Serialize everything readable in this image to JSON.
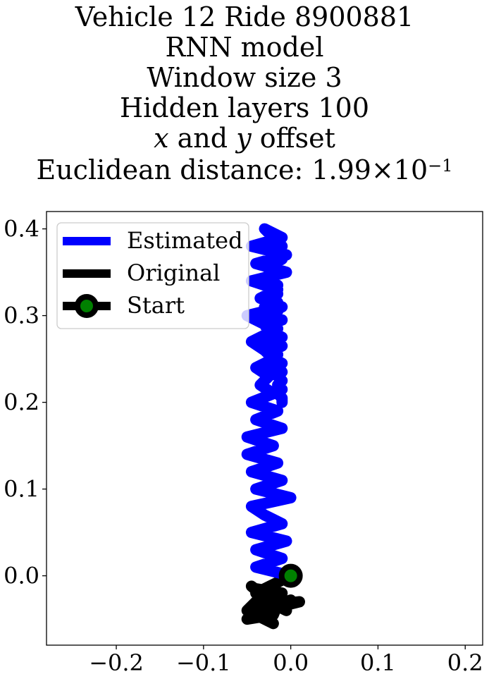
{
  "chart_data": {
    "type": "line",
    "title_lines": [
      "Vehicle 12 Ride 8900881",
      "RNN model",
      "Window size 3",
      "Hidden layers 100"
    ],
    "offset_line": {
      "x": "x",
      "and": " and ",
      "y": "y",
      "rest": " offset"
    },
    "distance_line": {
      "prefix": "Euclidean distance: ",
      "mantissa": "1.99",
      "times": "×",
      "base": "10",
      "exponent": "−1"
    },
    "xlim": [
      -0.28,
      0.22
    ],
    "ylim": [
      -0.08,
      0.42
    ],
    "xticks": [
      -0.2,
      -0.1,
      0.0,
      0.1,
      0.2
    ],
    "xtick_labels": [
      "−0.2",
      "−0.1",
      "0.0",
      "0.1",
      "0.2"
    ],
    "yticks": [
      0.0,
      0.1,
      0.2,
      0.3,
      0.4
    ],
    "ytick_labels": [
      "0.0",
      "0.1",
      "0.2",
      "0.3",
      "0.4"
    ],
    "legend_placement": "upper-left",
    "series": [
      {
        "name": "Estimated",
        "color": "#0000ff",
        "x": [
          0.0,
          -0.04,
          -0.01,
          -0.04,
          -0.005,
          -0.045,
          -0.01,
          -0.03,
          -0.045,
          0.0,
          -0.04,
          -0.01,
          -0.045,
          -0.015,
          -0.05,
          -0.02,
          -0.05,
          -0.01,
          -0.04,
          -0.015,
          -0.045,
          -0.02,
          -0.035,
          -0.025,
          -0.04,
          -0.02,
          -0.03,
          -0.045,
          -0.025,
          -0.03,
          -0.05,
          -0.01,
          -0.035,
          -0.015,
          -0.045,
          -0.005,
          -0.04,
          -0.005,
          -0.045,
          -0.01,
          -0.03,
          -0.02,
          -0.025,
          -0.01,
          -0.015,
          -0.02,
          -0.01,
          -0.02,
          -0.02,
          -0.025,
          -0.02,
          -0.025,
          -0.015,
          -0.02,
          -0.015,
          -0.025,
          -0.015,
          -0.03,
          -0.015,
          -0.03,
          -0.01,
          -0.025,
          -0.015,
          -0.02,
          -0.01,
          -0.03,
          -0.01,
          -0.02,
          -0.015,
          -0.02,
          -0.01,
          -0.025,
          -0.01,
          -0.015,
          -0.01,
          -0.015,
          -0.01,
          -0.015,
          -0.01,
          -0.01
        ],
        "y": [
          0.0,
          0.01,
          0.02,
          0.03,
          0.04,
          0.05,
          0.06,
          0.07,
          0.08,
          0.09,
          0.1,
          0.11,
          0.12,
          0.13,
          0.14,
          0.15,
          0.16,
          0.17,
          0.18,
          0.19,
          0.2,
          0.21,
          0.22,
          0.23,
          0.24,
          0.25,
          0.26,
          0.27,
          0.28,
          0.29,
          0.3,
          0.31,
          0.32,
          0.33,
          0.34,
          0.35,
          0.36,
          0.37,
          0.38,
          0.39,
          0.4,
          0.39,
          0.385,
          0.38,
          0.375,
          0.37,
          0.365,
          0.36,
          0.355,
          0.35,
          0.345,
          0.34,
          0.335,
          0.33,
          0.325,
          0.32,
          0.315,
          0.31,
          0.305,
          0.3,
          0.295,
          0.29,
          0.285,
          0.28,
          0.275,
          0.27,
          0.265,
          0.26,
          0.255,
          0.25,
          0.245,
          0.24,
          0.235,
          0.23,
          0.225,
          0.22,
          0.215,
          0.21,
          0.205,
          0.2
        ]
      },
      {
        "name": "Original",
        "color": "#000000",
        "x": [
          0.0,
          -0.02,
          -0.04,
          -0.01,
          -0.035,
          0.01,
          -0.03,
          -0.05,
          -0.02,
          -0.01,
          -0.04,
          -0.025,
          -0.005,
          -0.03,
          -0.045,
          -0.015,
          0.0,
          -0.035,
          -0.02,
          -0.05,
          -0.03
        ],
        "y": [
          0.0,
          -0.01,
          -0.02,
          -0.025,
          -0.035,
          -0.03,
          -0.04,
          -0.05,
          -0.045,
          -0.02,
          -0.015,
          -0.03,
          -0.04,
          -0.025,
          -0.012,
          -0.035,
          -0.028,
          -0.045,
          -0.055,
          -0.04,
          -0.02
        ]
      }
    ],
    "start": {
      "name": "Start",
      "x": 0.0,
      "y": 0.0,
      "marker_color": "#008000",
      "edge_color": "#000000"
    }
  }
}
